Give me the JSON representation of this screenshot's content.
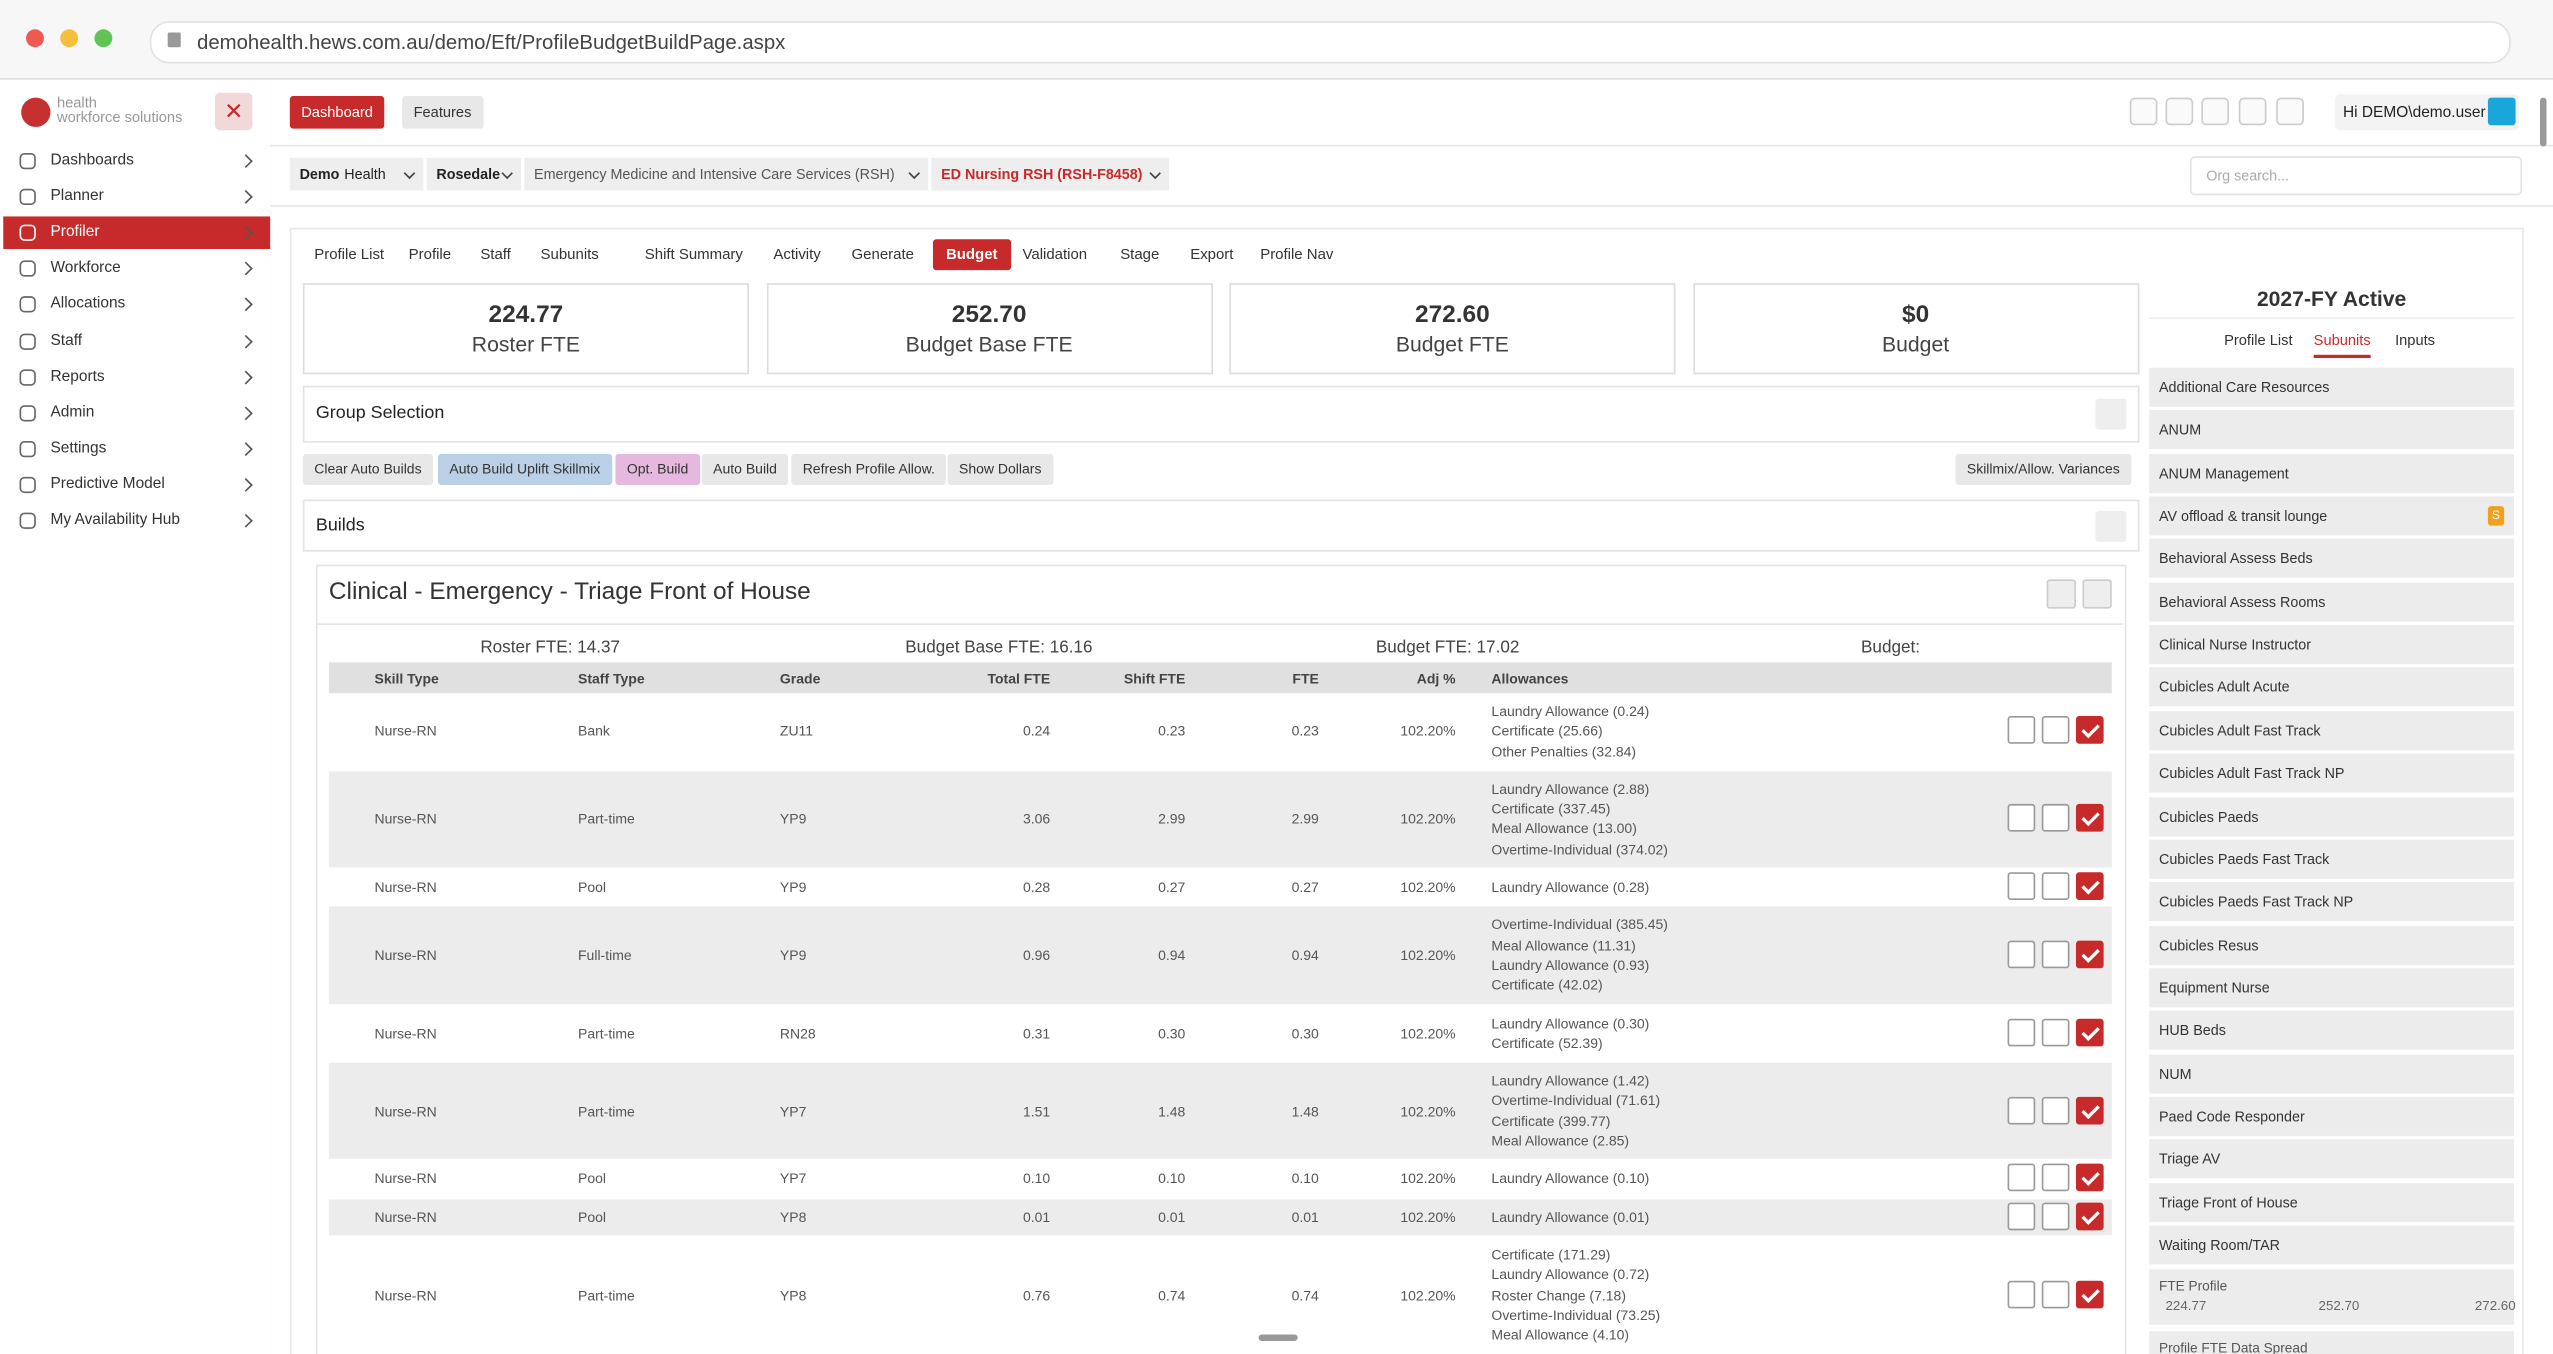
{
  "browser": {
    "url": "demohealth.hews.com.au/demo/Eft/ProfileBudgetBuildPage.aspx"
  },
  "sidebar": {
    "logo": [
      "health",
      "workforce solutions"
    ],
    "menu": [
      "Dashboards",
      "Planner",
      "Profiler",
      "Workforce",
      "Allocations",
      "Staff",
      "Reports",
      "Admin",
      "Settings",
      "Predictive Model",
      "My Availability Hub"
    ],
    "active": 2
  },
  "topbar": {
    "buttons": [
      "Dashboard",
      "Features"
    ],
    "user": "Hi DEMO\\demo.user"
  },
  "breadcrumbs": {
    "items": [
      [
        "Demo",
        "Health"
      ],
      [
        "Rosedale"
      ],
      [
        "Emergency Medicine and Intensive Care Services (RSH)"
      ],
      [
        "ED Nursing RSH (RSH-F8458)"
      ]
    ],
    "search": "Org search..."
  },
  "tabs": {
    "items": [
      "Profile List",
      "Profile",
      "Staff",
      "Subunits",
      "Shift Summary",
      "Activity",
      "Generate",
      "Budget",
      "Validation",
      "Stage",
      "Export",
      "Profile Nav"
    ],
    "active": 7
  },
  "stats": [
    {
      "value": "224.77",
      "label": "Roster FTE"
    },
    {
      "value": "252.70",
      "label": "Budget Base FTE"
    },
    {
      "value": "272.60",
      "label": "Budget FTE"
    },
    {
      "value": "$0",
      "label": "Budget"
    }
  ],
  "group_selection": {
    "title": "Group Selection"
  },
  "actions": {
    "left": [
      "Clear Auto Builds",
      "Auto Build Uplift Skillmix",
      "Opt. Build",
      "Auto Build",
      "Refresh Profile Allow.",
      "Show Dollars"
    ],
    "right": "Skillmix/Allow. Variances"
  },
  "builds": {
    "title": "Builds"
  },
  "build": {
    "title": "Clinical - Emergency - Triage Front of House",
    "summary": [
      "Roster FTE: 14.37",
      "Budget Base FTE: 16.16",
      "Budget FTE: 17.02",
      "Budget:"
    ],
    "headers": [
      "Skill Type",
      "Staff Type",
      "Grade",
      "Total FTE",
      "Shift FTE",
      "FTE",
      "Adj %",
      "Allowances"
    ],
    "rows": [
      [
        "Nurse-RN",
        "Bank",
        "ZU11",
        "0.24",
        "0.23",
        "0.23",
        "102.20%",
        [
          "Laundry Allowance (0.24)",
          "Certificate (25.66)",
          "Other Penalties (32.84)"
        ]
      ],
      [
        "Nurse-RN",
        "Part-time",
        "YP9",
        "3.06",
        "2.99",
        "2.99",
        "102.20%",
        [
          "Laundry Allowance (2.88)",
          "Certificate (337.45)",
          "Meal Allowance (13.00)",
          "Overtime-Individual (374.02)"
        ]
      ],
      [
        "Nurse-RN",
        "Pool",
        "YP9",
        "0.28",
        "0.27",
        "0.27",
        "102.20%",
        [
          "Laundry Allowance (0.28)"
        ]
      ],
      [
        "Nurse-RN",
        "Full-time",
        "YP9",
        "0.96",
        "0.94",
        "0.94",
        "102.20%",
        [
          "Overtime-Individual (385.45)",
          "Meal Allowance (11.31)",
          "Laundry Allowance (0.93)",
          "Certificate (42.02)"
        ]
      ],
      [
        "Nurse-RN",
        "Part-time",
        "RN28",
        "0.31",
        "0.30",
        "0.30",
        "102.20%",
        [
          "Laundry Allowance (0.30)",
          "Certificate (52.39)"
        ]
      ],
      [
        "Nurse-RN",
        "Part-time",
        "YP7",
        "1.51",
        "1.48",
        "1.48",
        "102.20%",
        [
          "Laundry Allowance (1.42)",
          "Overtime-Individual (71.61)",
          "Certificate (399.77)",
          "Meal Allowance (2.85)"
        ]
      ],
      [
        "Nurse-RN",
        "Pool",
        "YP7",
        "0.10",
        "0.10",
        "0.10",
        "102.20%",
        [
          "Laundry Allowance (0.10)"
        ]
      ],
      [
        "Nurse-RN",
        "Pool",
        "YP8",
        "0.01",
        "0.01",
        "0.01",
        "102.20%",
        [
          "Laundry Allowance (0.01)"
        ]
      ],
      [
        "Nurse-RN",
        "Part-time",
        "YP8",
        "0.76",
        "0.74",
        "0.74",
        "102.20%",
        [
          "Certificate (171.29)",
          "Laundry Allowance (0.72)",
          "Roster Change (7.18)",
          "Overtime-Individual (73.25)",
          "Meal Allowance (4.10)"
        ]
      ]
    ]
  },
  "right_panel": {
    "title": "2027-FY Active",
    "tabs": [
      "Profile List",
      "Subunits",
      "Inputs"
    ],
    "active_tab": 1,
    "items": [
      "Additional Care Resources",
      "ANUM",
      "ANUM Management",
      "AV offload & transit lounge",
      "Behavioral Assess Beds",
      "Behavioral Assess Rooms",
      "Clinical Nurse Instructor",
      "Cubicles Adult Acute",
      "Cubicles Adult Fast Track",
      "Cubicles Adult Fast Track NP",
      "Cubicles Paeds",
      "Cubicles Paeds Fast Track",
      "Cubicles Paeds Fast Track NP",
      "Cubicles Resus",
      "Equipment Nurse",
      "HUB Beds",
      "NUM",
      "Paed Code Responder",
      "Triage AV",
      "Triage Front of House",
      "Waiting Room/TAR"
    ],
    "badge": {
      "item": 3,
      "text": "S"
    },
    "fte_profile": {
      "label": "FTE Profile",
      "values": [
        "224.77",
        "252.70",
        "272.60"
      ]
    },
    "spread_label": "Profile FTE Data Spread"
  }
}
